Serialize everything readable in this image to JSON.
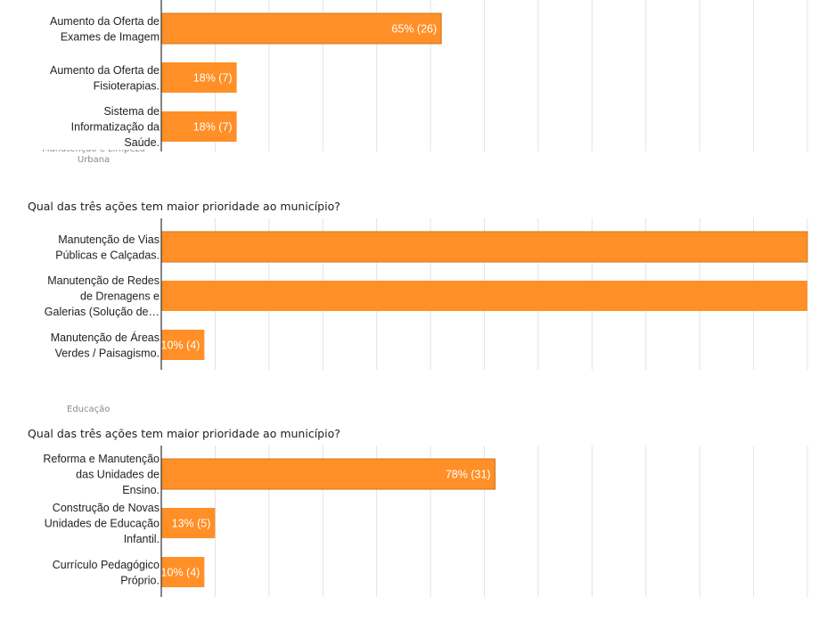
{
  "sections": [
    {
      "label": "",
      "question": "",
      "cut_label": [
        "Manutenção e Limpeza",
        "Urbana"
      ]
    },
    {
      "label": "",
      "question": "Qual das três ações tem maior prioridade ao município?"
    },
    {
      "label": "Educação",
      "question": "Qual das três ações tem maior prioridade ao município?"
    }
  ],
  "colors": {
    "bar": "#ff8f26",
    "bar_edge": "#cf7420",
    "grid": "#e3e3e3",
    "axis": "#333333",
    "label": "#222222",
    "value": "#ffffff"
  },
  "chart_data": [
    {
      "type": "bar",
      "orientation": "horizontal",
      "title": "",
      "xlim": [
        0,
        60
      ],
      "grid": true,
      "categories": [
        [
          "Aumento da Oferta de",
          "Exames de Imagem"
        ],
        [
          "Aumento da Oferta de",
          "Fisioterapias."
        ],
        [
          "Sistema de",
          "Informatização da",
          "Saúde."
        ]
      ],
      "values": [
        26,
        7,
        7
      ],
      "value_labels": [
        "65% (26)",
        "18% (7)",
        "18% (7)"
      ]
    },
    {
      "type": "bar",
      "orientation": "horizontal",
      "title": "",
      "xlim": [
        0,
        60
      ],
      "grid": true,
      "categories": [
        [
          "Manutenção de Vias",
          "Públicas e Calçadas."
        ],
        [
          "Manutenção de Redes",
          "de Drenagens e",
          "Galerias (Solução de…"
        ],
        [
          "Manutenção de Áreas",
          "Verdes / Paisagismo."
        ]
      ],
      "values": [
        60,
        60,
        4
      ],
      "value_labels": [
        "",
        "",
        "10% (4)"
      ]
    },
    {
      "type": "bar",
      "orientation": "horizontal",
      "title": "",
      "xlim": [
        0,
        60
      ],
      "grid": true,
      "categories": [
        [
          "Reforma e Manutenção",
          "das Unidades de",
          "Ensino."
        ],
        [
          "Construção de Novas",
          "Unidades de Educação",
          "Infantil."
        ],
        [
          "Currículo Pedagógico",
          "Próprio."
        ]
      ],
      "values": [
        31,
        5,
        4
      ],
      "value_labels": [
        "78% (31)",
        "13% (5)",
        "10% (4)"
      ]
    }
  ]
}
